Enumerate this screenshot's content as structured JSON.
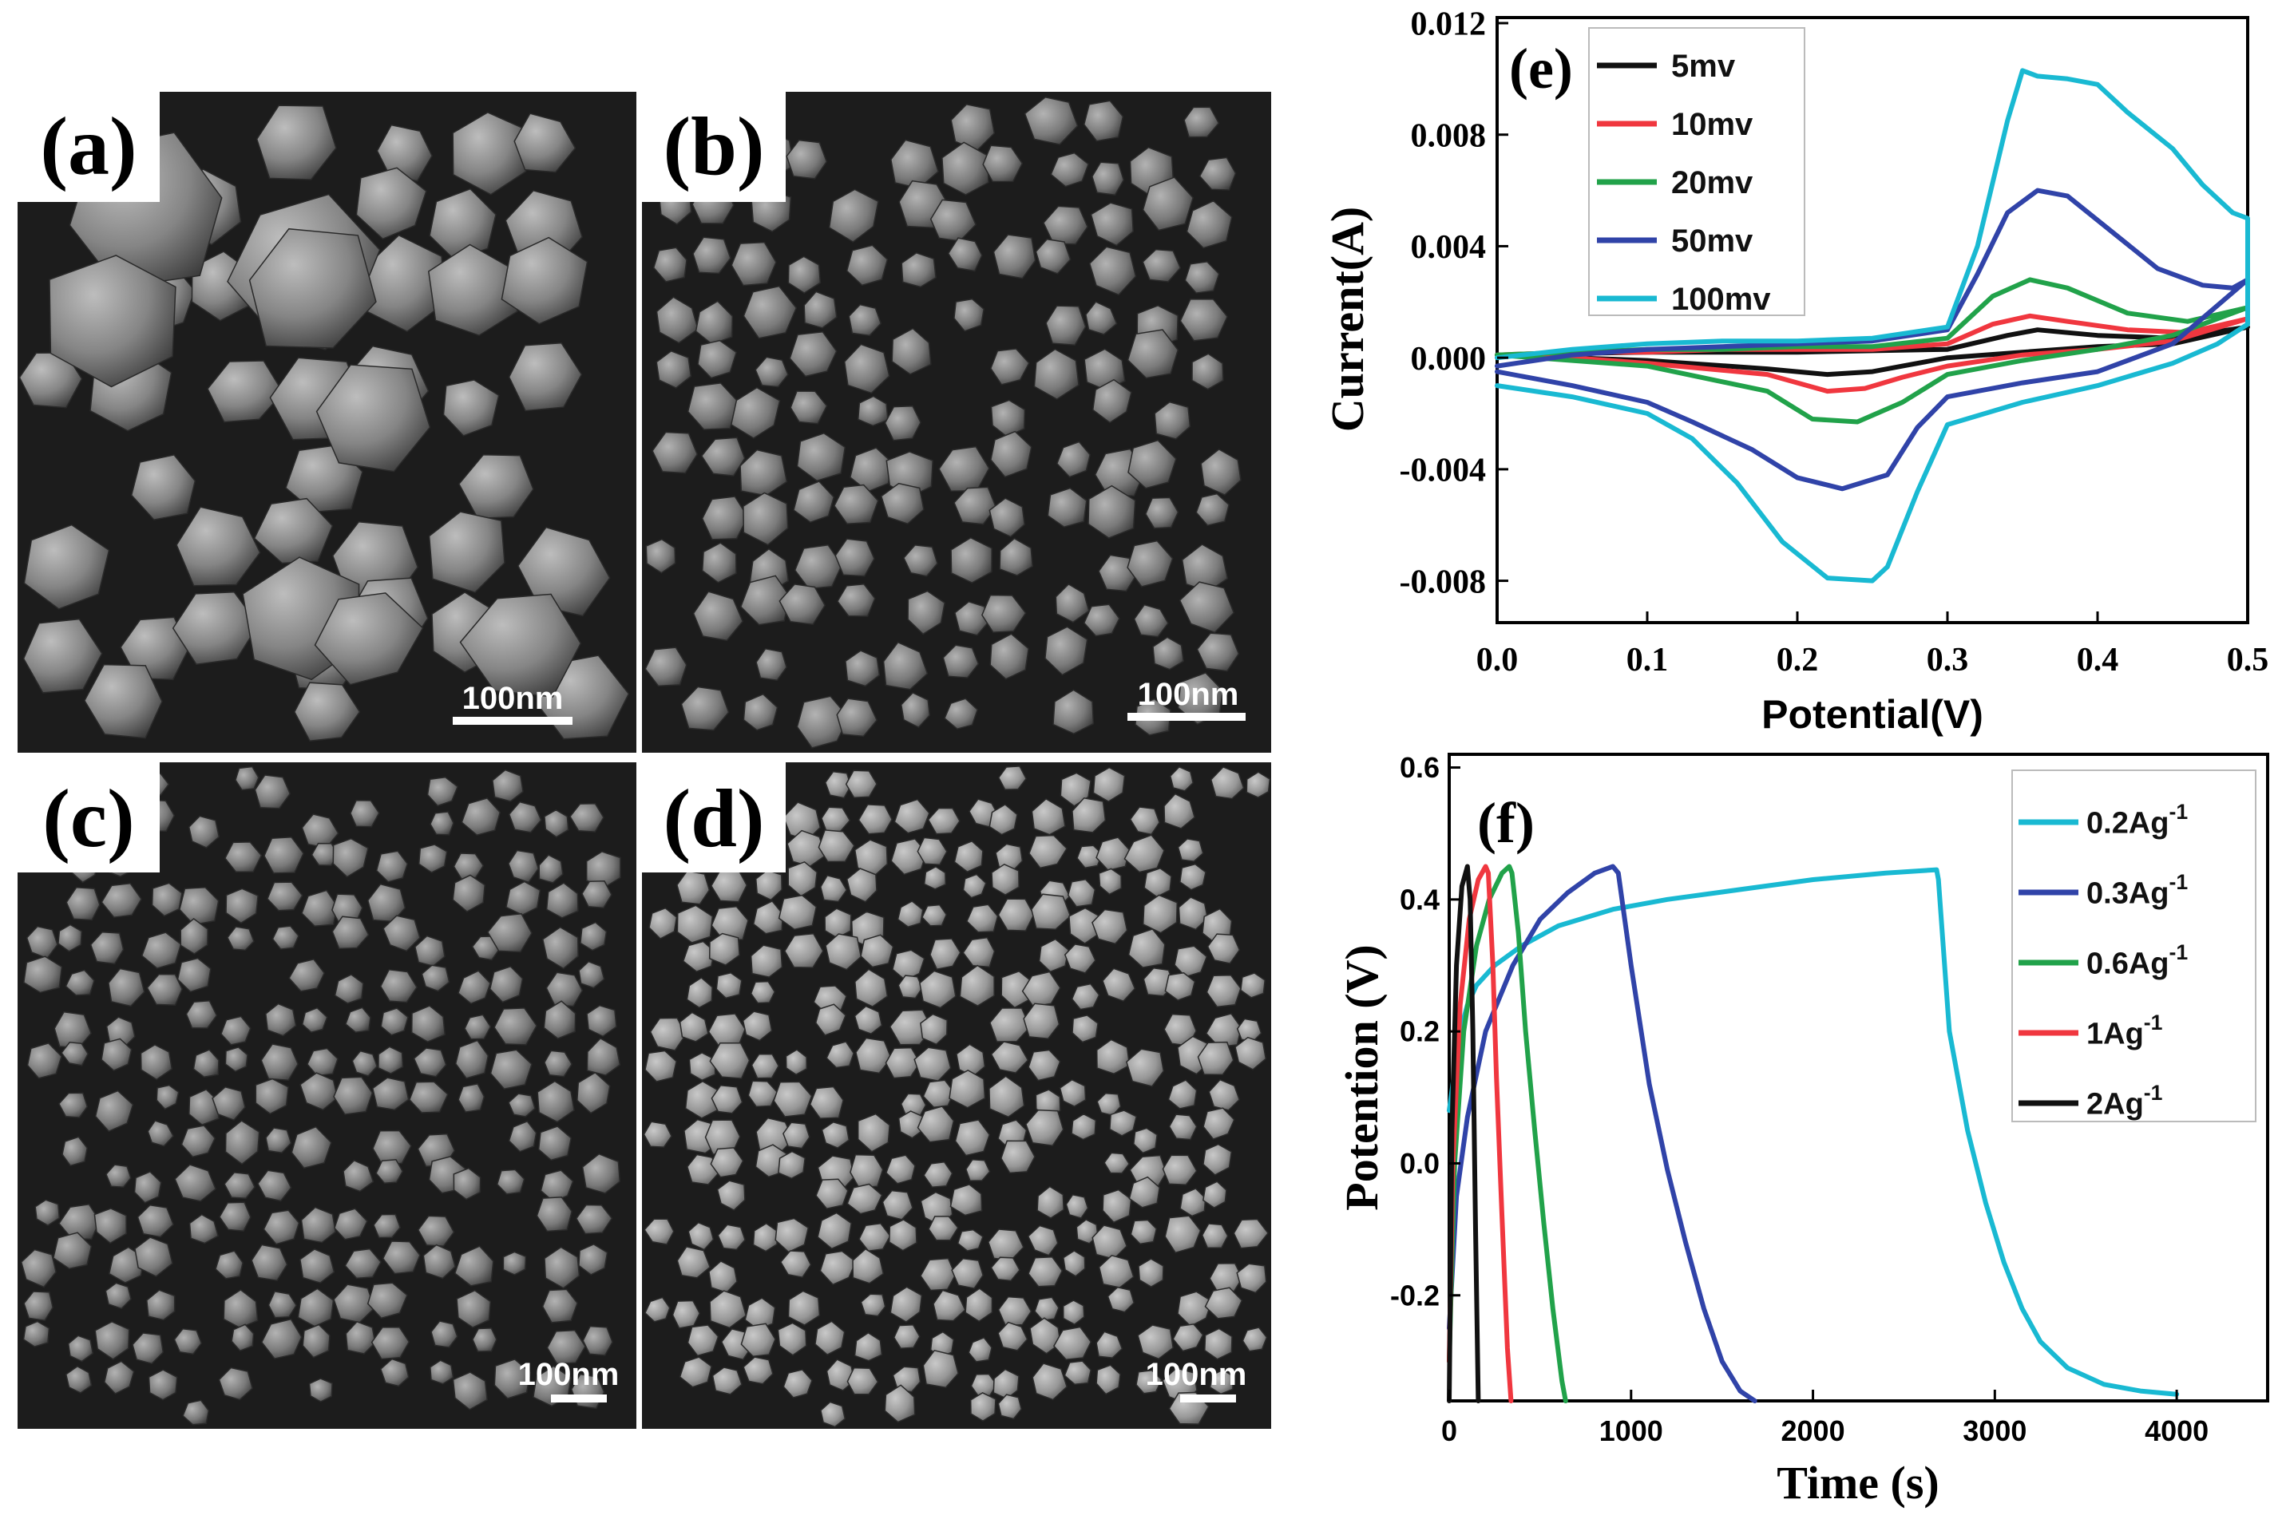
{
  "figure": {
    "panels": {
      "a": {
        "label": "(a)",
        "scale_bar": "100nm"
      },
      "b": {
        "label": "(b)",
        "scale_bar": "100nm"
      },
      "c": {
        "label": "(c)",
        "scale_bar": "100nm"
      },
      "d": {
        "label": "(d)",
        "scale_bar": "100nm"
      }
    }
  },
  "colors": {
    "black": "#111111",
    "red": "#f0373f",
    "green": "#21a24a",
    "blue": "#3043a8",
    "cyan": "#19b9d2",
    "sem_bg": "#1c1c1c"
  },
  "chart_data": [
    {
      "panel": "(e)",
      "type": "line",
      "title": "",
      "xlabel": "Potential(V)",
      "ylabel": "Current(A)",
      "xlim": [
        0.0,
        0.5
      ],
      "ylim": [
        -0.0095,
        0.0122
      ],
      "xticks": [
        0.0,
        0.1,
        0.2,
        0.3,
        0.4,
        0.5
      ],
      "xtick_labels": [
        "0.0",
        "0.1",
        "0.2",
        "0.3",
        "0.4",
        "0.5"
      ],
      "yticks": [
        -0.008,
        -0.004,
        0.0,
        0.004,
        0.008,
        0.012
      ],
      "ytick_labels": [
        "-0.008",
        "-0.004",
        "0.000",
        "0.004",
        "0.008",
        "0.012"
      ],
      "legend_position": "top-left",
      "series": [
        {
          "name": "5mv",
          "color": "#111111",
          "x": [
            0,
            0.05,
            0.1,
            0.15,
            0.2,
            0.25,
            0.3,
            0.34,
            0.36,
            0.4,
            0.45,
            0.5,
            0.5,
            0.45,
            0.4,
            0.35,
            0.3,
            0.27,
            0.25,
            0.22,
            0.18,
            0.1,
            0.05,
            0
          ],
          "y": [
            0.0001,
            0.00015,
            0.0002,
            0.0002,
            0.0002,
            0.00025,
            0.0003,
            0.0008,
            0.001,
            0.0008,
            0.0007,
            0.0011,
            0.0011,
            0.0005,
            0.0004,
            0.0002,
            0.0,
            -0.0003,
            -0.0005,
            -0.0006,
            -0.0004,
            -0.0001,
            0.0,
            0.0001
          ]
        },
        {
          "name": "10mv",
          "color": "#f0373f",
          "x": [
            0,
            0.05,
            0.1,
            0.15,
            0.2,
            0.25,
            0.3,
            0.33,
            0.355,
            0.38,
            0.42,
            0.46,
            0.5,
            0.5,
            0.45,
            0.4,
            0.35,
            0.3,
            0.27,
            0.245,
            0.22,
            0.18,
            0.1,
            0.05,
            0
          ],
          "y": [
            0.0001,
            0.0002,
            0.0002,
            0.0003,
            0.0003,
            0.0003,
            0.0005,
            0.0012,
            0.0015,
            0.0013,
            0.001,
            0.0009,
            0.0014,
            0.0014,
            0.0006,
            0.0003,
            0.0001,
            -0.0003,
            -0.0007,
            -0.0011,
            -0.0012,
            -0.0006,
            -0.0002,
            0.0,
            0.0001
          ]
        },
        {
          "name": "20mv",
          "color": "#21a24a",
          "x": [
            0,
            0.05,
            0.1,
            0.15,
            0.2,
            0.25,
            0.3,
            0.33,
            0.355,
            0.38,
            0.42,
            0.46,
            0.5,
            0.5,
            0.45,
            0.4,
            0.35,
            0.3,
            0.27,
            0.24,
            0.21,
            0.18,
            0.1,
            0.05,
            0
          ],
          "y": [
            0.0001,
            0.0002,
            0.0003,
            0.0003,
            0.0004,
            0.0004,
            0.0007,
            0.0022,
            0.0028,
            0.0025,
            0.0016,
            0.0013,
            0.0018,
            0.0018,
            0.0008,
            0.0003,
            -0.0001,
            -0.0006,
            -0.0016,
            -0.0023,
            -0.0022,
            -0.0012,
            -0.0003,
            -0.0001,
            0.0001
          ]
        },
        {
          "name": "50mv",
          "color": "#3043a8",
          "x": [
            0,
            0.05,
            0.1,
            0.15,
            0.2,
            0.25,
            0.3,
            0.32,
            0.34,
            0.36,
            0.38,
            0.41,
            0.44,
            0.47,
            0.49,
            0.5,
            0.5,
            0.45,
            0.4,
            0.35,
            0.3,
            0.28,
            0.26,
            0.23,
            0.2,
            0.17,
            0.13,
            0.1,
            0.05,
            0
          ],
          "y": [
            -0.0003,
            0.0001,
            0.0003,
            0.0004,
            0.0005,
            0.0006,
            0.001,
            0.003,
            0.0052,
            0.006,
            0.0058,
            0.0045,
            0.0032,
            0.0026,
            0.0025,
            0.0028,
            0.0028,
            0.0005,
            -0.0005,
            -0.0009,
            -0.0014,
            -0.0025,
            -0.0042,
            -0.0047,
            -0.0043,
            -0.0033,
            -0.0023,
            -0.0016,
            -0.001,
            -0.0005
          ]
        },
        {
          "name": "100mv",
          "color": "#19b9d2",
          "x": [
            0,
            0.05,
            0.1,
            0.15,
            0.2,
            0.25,
            0.3,
            0.32,
            0.34,
            0.35,
            0.36,
            0.38,
            0.4,
            0.42,
            0.45,
            0.47,
            0.49,
            0.5,
            0.5,
            0.48,
            0.45,
            0.4,
            0.35,
            0.3,
            0.28,
            0.26,
            0.25,
            0.22,
            0.19,
            0.16,
            0.13,
            0.1,
            0.05,
            0
          ],
          "y": [
            0.0,
            0.0003,
            0.0005,
            0.0006,
            0.0006,
            0.0007,
            0.0011,
            0.004,
            0.0085,
            0.0103,
            0.0101,
            0.01,
            0.0098,
            0.0088,
            0.0075,
            0.0062,
            0.0052,
            0.005,
            0.0012,
            0.0005,
            -0.0002,
            -0.001,
            -0.0016,
            -0.0024,
            -0.0048,
            -0.0075,
            -0.008,
            -0.0079,
            -0.0066,
            -0.0045,
            -0.0029,
            -0.002,
            -0.0014,
            -0.001
          ]
        }
      ]
    },
    {
      "panel": "(f)",
      "type": "line",
      "title": "",
      "xlabel": "Time (s)",
      "ylabel": "Potention (V)",
      "xlim": [
        0,
        4500
      ],
      "ylim": [
        -0.36,
        0.62
      ],
      "xticks": [
        0,
        1000,
        2000,
        3000,
        4000
      ],
      "xtick_labels": [
        "0",
        "1000",
        "2000",
        "3000",
        "4000"
      ],
      "yticks": [
        -0.2,
        0.0,
        0.2,
        0.4,
        0.6
      ],
      "ytick_labels": [
        "-0.2",
        "0.0",
        "0.2",
        "0.4",
        "0.6"
      ],
      "legend_position": "top-right",
      "series": [
        {
          "name": "0.2Ag",
          "sup": "-1",
          "color": "#19b9d2",
          "x": [
            0,
            60,
            100,
            150,
            250,
            400,
            600,
            900,
            1200,
            1600,
            2000,
            2400,
            2680,
            2690,
            2750,
            2850,
            2950,
            3050,
            3150,
            3250,
            3400,
            3600,
            3800,
            4000
          ],
          "y": [
            0.08,
            0.2,
            0.24,
            0.27,
            0.3,
            0.33,
            0.36,
            0.385,
            0.4,
            0.415,
            0.43,
            0.44,
            0.445,
            0.43,
            0.2,
            0.05,
            -0.06,
            -0.15,
            -0.22,
            -0.27,
            -0.31,
            -0.335,
            -0.345,
            -0.35
          ]
        },
        {
          "name": "0.3Ag",
          "sup": "-1",
          "color": "#3043a8",
          "x": [
            0,
            40,
            100,
            200,
            350,
            500,
            650,
            800,
            900,
            930,
            1000,
            1100,
            1200,
            1300,
            1400,
            1500,
            1600,
            1680
          ],
          "y": [
            -0.25,
            -0.05,
            0.07,
            0.2,
            0.3,
            0.37,
            0.41,
            0.44,
            0.45,
            0.44,
            0.3,
            0.12,
            -0.01,
            -0.12,
            -0.22,
            -0.3,
            -0.345,
            -0.36
          ]
        },
        {
          "name": "0.6Ag",
          "sup": "-1",
          "color": "#21a24a",
          "x": [
            0,
            30,
            80,
            150,
            220,
            290,
            330,
            345,
            380,
            420,
            470,
            520,
            570,
            620,
            640
          ],
          "y": [
            -0.3,
            0.0,
            0.2,
            0.33,
            0.4,
            0.44,
            0.45,
            0.44,
            0.35,
            0.2,
            0.05,
            -0.09,
            -0.22,
            -0.33,
            -0.36
          ]
        },
        {
          "name": "1Ag",
          "sup": "-1",
          "color": "#f0373f",
          "x": [
            0,
            20,
            60,
            110,
            160,
            200,
            215,
            240,
            260,
            290,
            320,
            340
          ],
          "y": [
            -0.3,
            0.0,
            0.24,
            0.37,
            0.43,
            0.45,
            0.44,
            0.3,
            0.13,
            -0.08,
            -0.28,
            -0.36
          ]
        },
        {
          "name": "2Ag",
          "sup": "-1",
          "color": "#111111",
          "x": [
            0,
            15,
            40,
            70,
            100,
            115,
            130,
            145,
            160
          ],
          "y": [
            -0.36,
            0.05,
            0.3,
            0.42,
            0.45,
            0.4,
            0.2,
            -0.1,
            -0.36
          ]
        }
      ]
    }
  ]
}
